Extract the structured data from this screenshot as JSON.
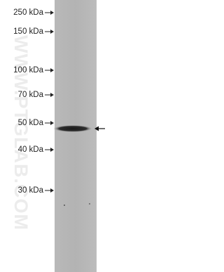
{
  "markers": [
    "250 kDa",
    "150 kDa",
    "100 kDa",
    "70 kDa",
    "50 kDa",
    "40 kDa",
    "30 kDa"
  ],
  "watermark": "WWW.PTGLAB.COM"
}
